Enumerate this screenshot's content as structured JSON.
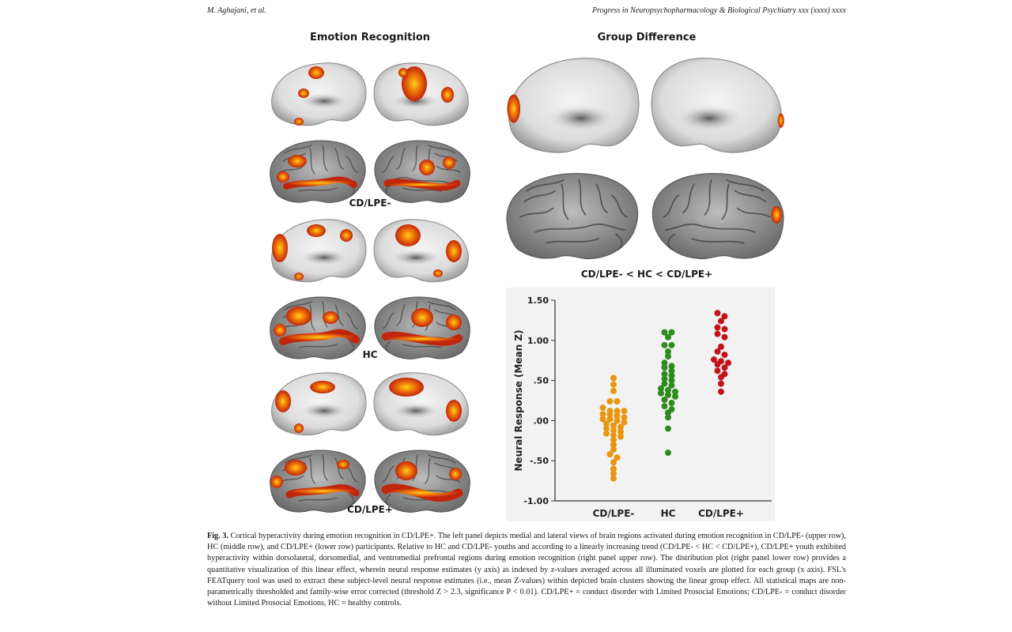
{
  "header": {
    "authors": "M. Aghajani, et al.",
    "journal": "Progress in Neuropsychopharmacology & Biological Psychiatry xxx (xxxx) xxxx"
  },
  "left_panel": {
    "title": "Emotion Recognition",
    "groups": [
      "CD/LPE-",
      "HC",
      "CD/LPE+"
    ]
  },
  "right_panel": {
    "title": "Group Difference",
    "contrast_label": "CD/LPE- < HC < CD/LPE+"
  },
  "chart_data": {
    "type": "scatter",
    "ylabel": "Neural Response  (Mean Z)",
    "xlabel": "",
    "categories": [
      "CD/LPE-",
      "HC",
      "CD/LPE+"
    ],
    "ylim": [
      -1.0,
      1.5
    ],
    "y_ticks": [
      1.5,
      1.0,
      0.5,
      0.0,
      -0.5,
      -1.0
    ],
    "y_tick_labels": [
      "1.50",
      "1.00",
      ".50",
      ".00",
      "-.50",
      "-1.00"
    ],
    "grid": false,
    "colors": {
      "CD/LPE-": "#e8960f",
      "HC": "#2e8b1e",
      "CD/LPE+": "#c0141a"
    },
    "series": [
      {
        "name": "CD/LPE-",
        "values": [
          0.53,
          0.45,
          0.37,
          0.24,
          0.24,
          0.16,
          0.12,
          0.12,
          0.12,
          0.08,
          0.08,
          0.06,
          0.04,
          0.02,
          0.02,
          0.0,
          -0.02,
          -0.04,
          -0.06,
          -0.08,
          -0.1,
          -0.12,
          -0.14,
          -0.16,
          -0.18,
          -0.2,
          -0.24,
          -0.3,
          -0.36,
          -0.42,
          -0.46,
          -0.52,
          -0.6,
          -0.66,
          -0.72
        ]
      },
      {
        "name": "HC",
        "values": [
          1.1,
          1.1,
          1.04,
          0.94,
          0.94,
          0.86,
          0.8,
          0.72,
          0.68,
          0.66,
          0.62,
          0.58,
          0.56,
          0.52,
          0.5,
          0.46,
          0.44,
          0.4,
          0.38,
          0.36,
          0.34,
          0.32,
          0.3,
          0.26,
          0.22,
          0.18,
          0.14,
          0.1,
          0.04,
          -0.1,
          -0.4
        ]
      },
      {
        "name": "CD/LPE+",
        "values": [
          1.34,
          1.3,
          1.24,
          1.16,
          1.14,
          1.08,
          1.04,
          0.92,
          0.86,
          0.82,
          0.76,
          0.74,
          0.72,
          0.7,
          0.66,
          0.62,
          0.58,
          0.54,
          0.46,
          0.36
        ]
      }
    ]
  },
  "caption": {
    "label": "Fig. 3.",
    "text": "Cortical hyperactivity during emotion recognition in CD/LPE+. The left panel depicts medial and lateral views of brain regions activated during emotion recognition in CD/LPE- (upper row), HC (middle row), and CD/LPE+ (lower row) participants. Relative to HC and CD/LPE- youths and according to a linearly increasing trend (CD/LPE- < HC < CD/LPE+), CD/LPE+ youth exhibited hyperactivity within dorsolateral, dorsomedial, and ventromedial prefrontal regions during emotion recognition (right panel upper row). The distribution plot (right panel lower row) provides a quantitative visualization of this linear effect, wherein neural response estimates (y axis) as indexed by z-values averaged across all illuminated voxels are plotted for each group (x axis). FSL's FEATquery tool was used to extract these subject-level neural response estimates (i.e., mean Z-values) within depicted brain clusters showing the linear group effect. All statistical maps are non-parametrically thresholded and family-wise error corrected (threshold Z > 2.3, significance P < 0.01). CD/LPE+ = conduct disorder with Limited Prosocial Emotions; CD/LPE- = conduct disorder without Limited Prosocial Emotions, HC = healthy controls."
  }
}
